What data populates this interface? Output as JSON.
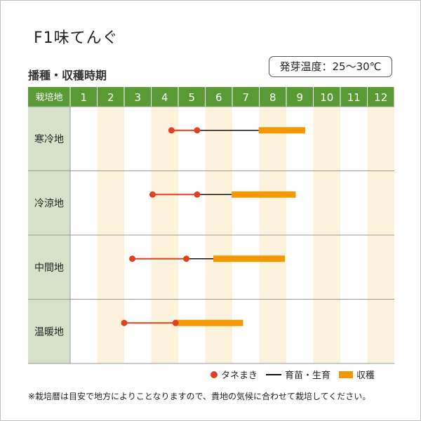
{
  "title": "F1味てんぐ",
  "subtitle": "播種・収穫時期",
  "temperature_note": "発芽温度：25～30℃",
  "legend": {
    "sowing": "タネまき",
    "growing": "育苗・生育",
    "harvest": "収穫"
  },
  "footnote": "※栽培暦は目安で地方によりことなりますので、貴地の気候に合わせて栽培してください。",
  "colors": {
    "header_bg": "#5a9a34",
    "region_bg": "#d5e1c8",
    "stripe_bg": "#fdf2dc",
    "sowing": "#e2401f",
    "harvest": "#f39800",
    "growing": "#111111"
  },
  "chart_data": {
    "type": "table",
    "header_label": "栽培地",
    "months": [
      "1",
      "2",
      "3",
      "4",
      "5",
      "6",
      "7",
      "8",
      "9",
      "10",
      "11",
      "12"
    ],
    "rows": [
      {
        "region": "寒冷地",
        "sow_start": 4.75,
        "sow_end": 5.7,
        "harvest_start": 7.98,
        "harvest_end": 9.7
      },
      {
        "region": "冷涼地",
        "sow_start": 4.05,
        "sow_end": 5.7,
        "harvest_start": 6.98,
        "harvest_end": 9.35
      },
      {
        "region": "中間地",
        "sow_start": 3.3,
        "sow_end": 5.3,
        "harvest_start": 6.3,
        "harvest_end": 8.95
      },
      {
        "region": "温暖地",
        "sow_start": 3.0,
        "sow_end": 4.9,
        "harvest_start": 4.85,
        "harvest_end": 7.4
      }
    ]
  }
}
